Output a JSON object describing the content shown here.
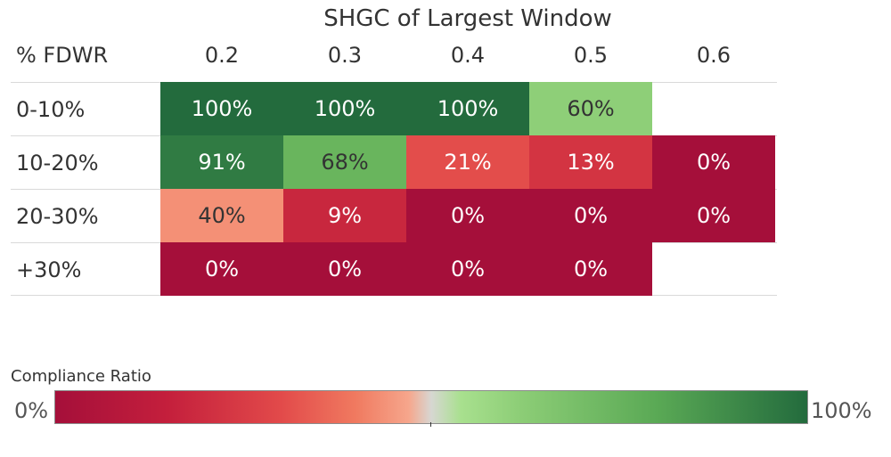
{
  "chart_data": {
    "type": "heatmap",
    "title": "SHGC of Largest Window",
    "row_header": "% FDWR",
    "columns": [
      "0.2",
      "0.3",
      "0.4",
      "0.5",
      "0.6"
    ],
    "rows": [
      "0-10%",
      "10-20%",
      "20-30%",
      "+30%"
    ],
    "values": [
      [
        100,
        100,
        100,
        60,
        null
      ],
      [
        91,
        68,
        21,
        13,
        0
      ],
      [
        40,
        9,
        0,
        0,
        0
      ],
      [
        0,
        0,
        0,
        0,
        null
      ]
    ],
    "labels": [
      [
        "100%",
        "100%",
        "100%",
        "60%",
        ""
      ],
      [
        "91%",
        "68%",
        "21%",
        "13%",
        "0%"
      ],
      [
        "40%",
        "9%",
        "0%",
        "0%",
        "0%"
      ],
      [
        "0%",
        "0%",
        "0%",
        "0%",
        ""
      ]
    ],
    "color_scale": {
      "stops": [
        [
          0,
          "#a50f3a"
        ],
        [
          10,
          "#cc2a3e"
        ],
        [
          20,
          "#e24a4a"
        ],
        [
          35,
          "#f07a60"
        ],
        [
          45,
          "#f8a58c"
        ],
        [
          50,
          "#d6d6d0"
        ],
        [
          55,
          "#a8e08e"
        ],
        [
          65,
          "#74be62"
        ],
        [
          80,
          "#3f8f4a"
        ],
        [
          100,
          "#236b3d"
        ]
      ]
    },
    "legend": {
      "title": "Compliance Ratio",
      "min_label": "0%",
      "max_label": "100%",
      "range": [
        0,
        100
      ]
    }
  }
}
